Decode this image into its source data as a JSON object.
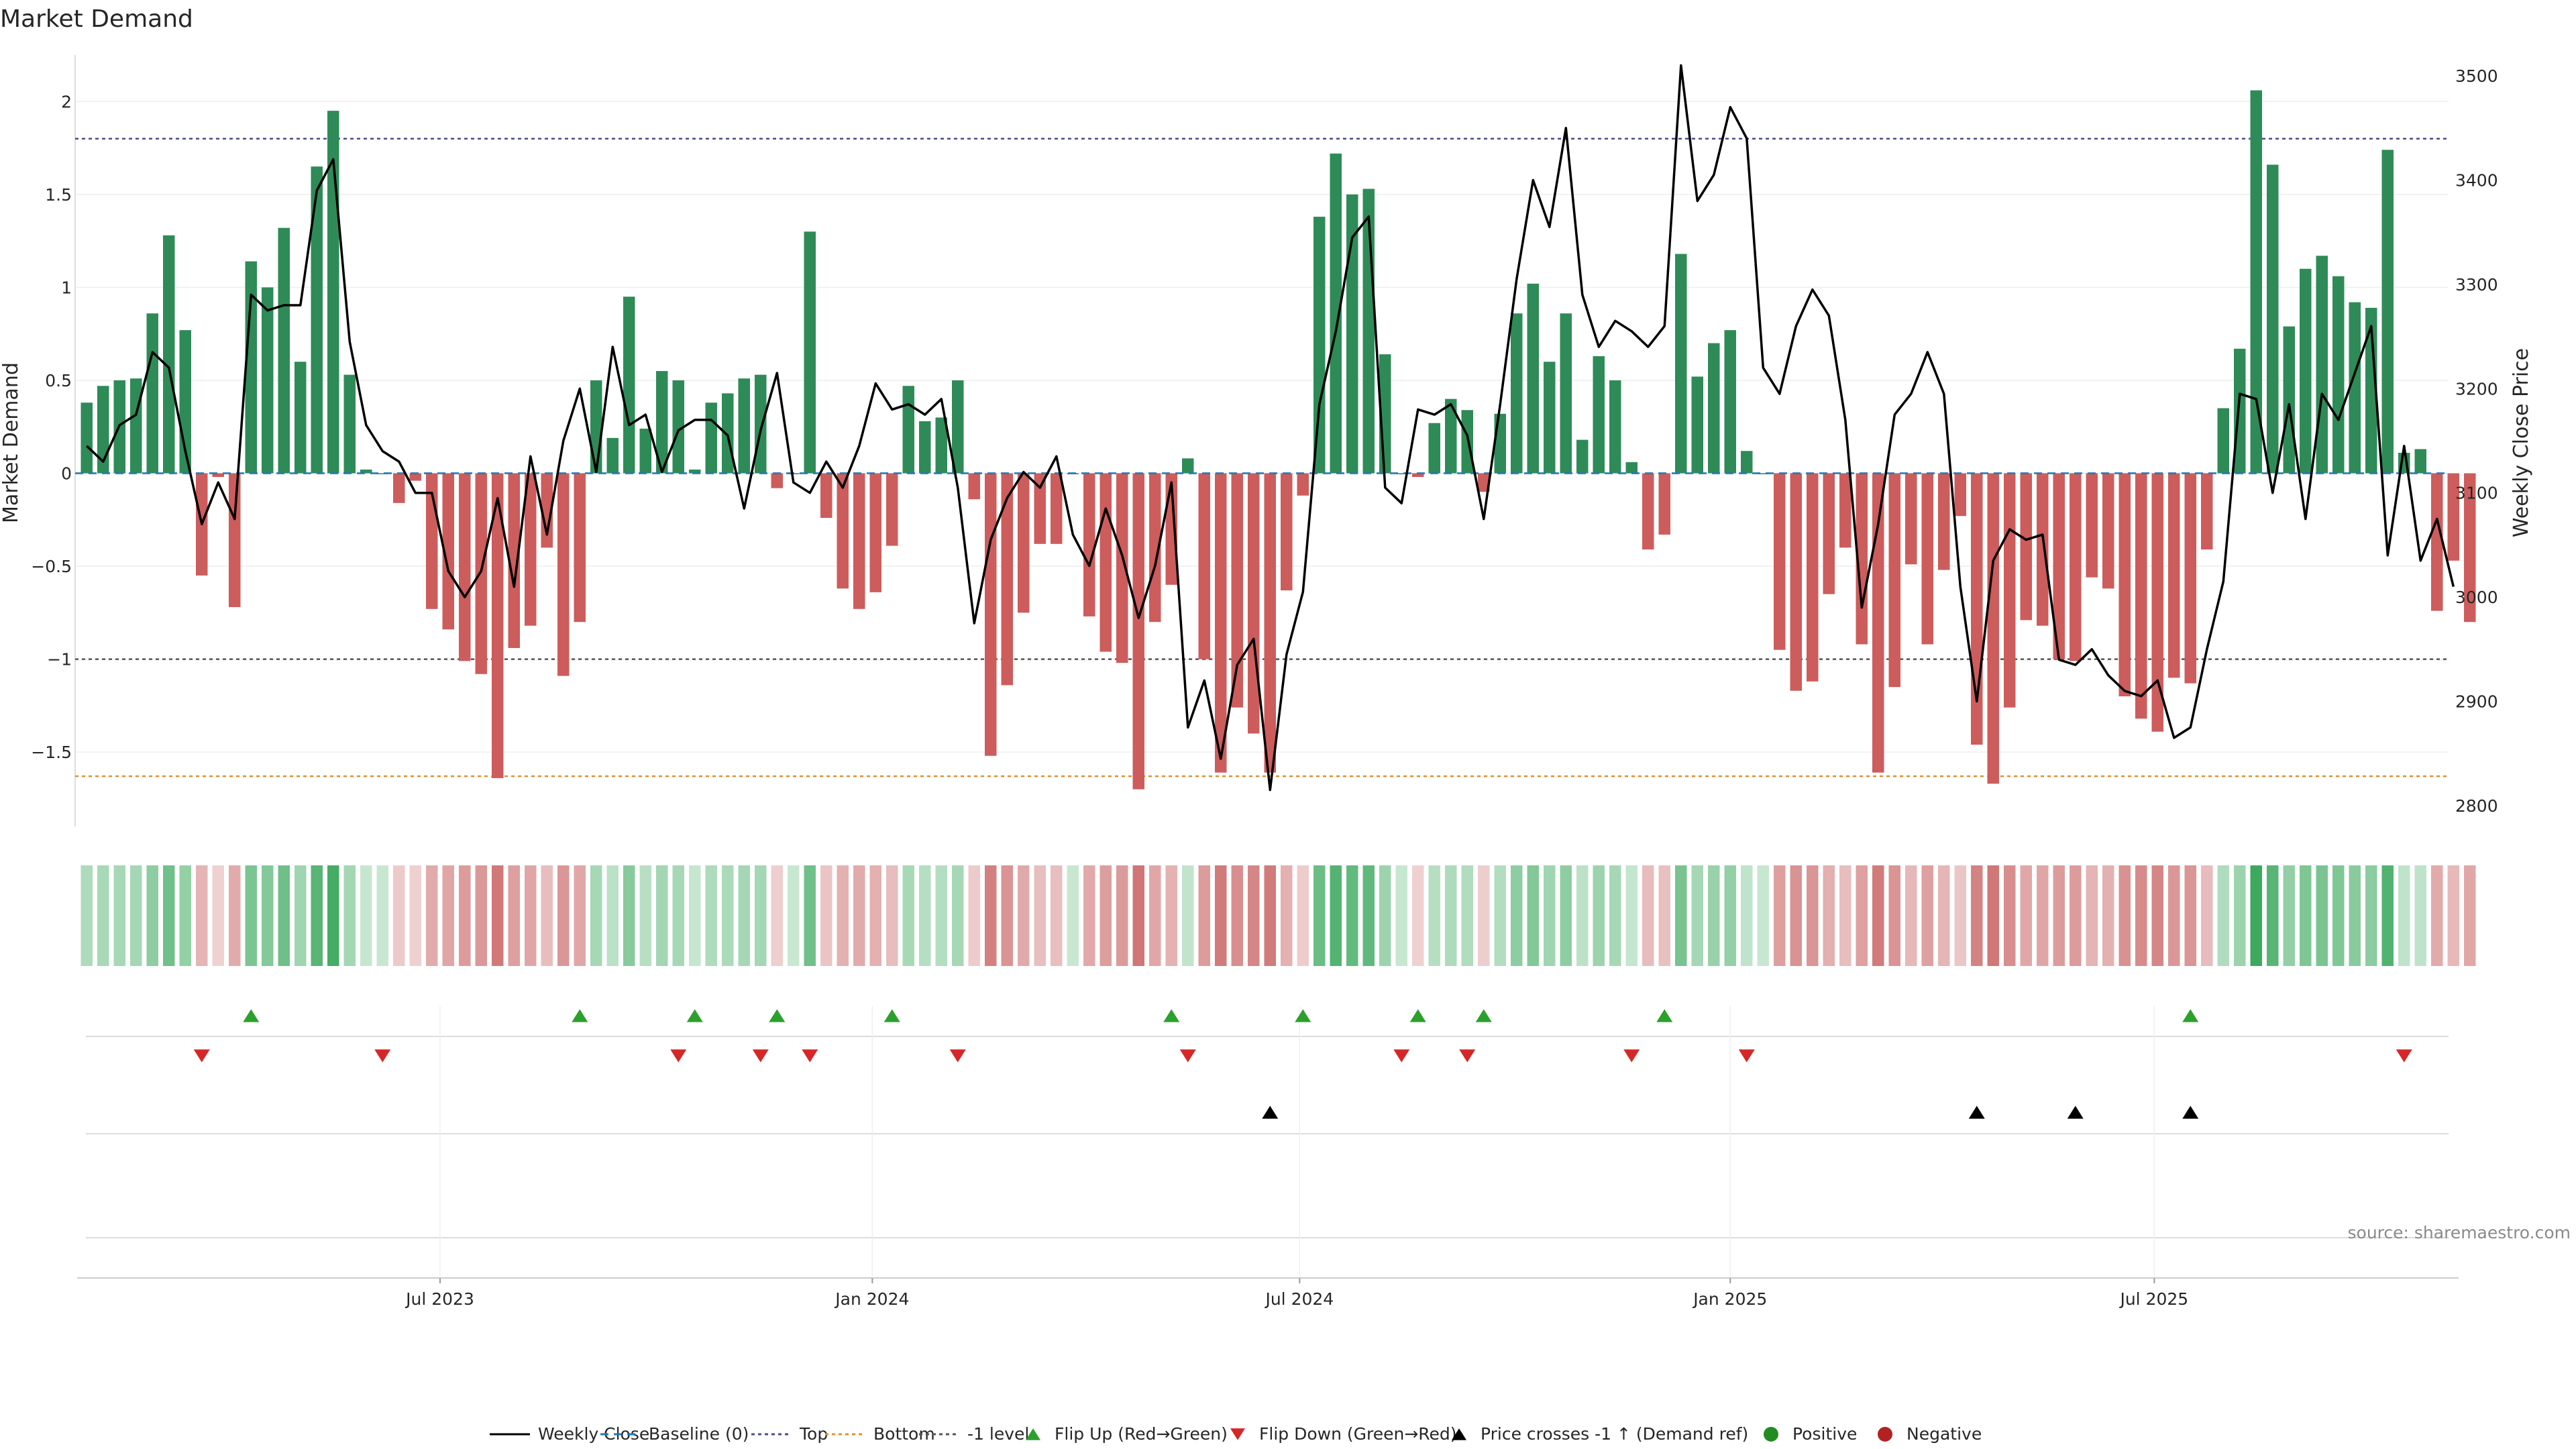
{
  "chart_data": {
    "type": "bar",
    "title": "Market Demand",
    "ylabel_left": "Market Demand",
    "ylabel_right": "Weekly Close Price",
    "ylim_left": [
      -1.9,
      2.25
    ],
    "ylim_right": [
      2780,
      3520
    ],
    "yticks_left": [
      2,
      1.5,
      1,
      0.5,
      0,
      -0.5,
      -1,
      -1.5
    ],
    "ytick_labels_left": [
      "2",
      "1.5",
      "1",
      "0.5",
      "0",
      "−0.5",
      "−1",
      "−1.5"
    ],
    "yticks_right": [
      3500,
      3400,
      3300,
      3200,
      3100,
      3000,
      2900,
      2800
    ],
    "ytick_labels_right": [
      "3500",
      "3400",
      "3300",
      "3200",
      "3100",
      "3000",
      "2900",
      "2800"
    ],
    "reference_lines": {
      "top": 1.8,
      "bottom": -1.63,
      "minus_one": -1.0,
      "baseline": 0
    },
    "x_tick_labels": [
      "Jul 2023",
      "Jan 2024",
      "Jul 2024",
      "Jan 2025",
      "Jul 2025"
    ],
    "x_tick_index": [
      22,
      48.3,
      74.3,
      100.5,
      126.3
    ],
    "demand": [
      0.38,
      0.47,
      0.5,
      0.51,
      0.86,
      1.28,
      0.77,
      -0.55,
      -0.02,
      -0.72,
      1.14,
      1.0,
      1.32,
      0.6,
      1.65,
      1.95,
      0.53,
      0.02,
      0.0,
      -0.16,
      -0.04,
      -0.73,
      -0.84,
      -1.01,
      -1.08,
      -1.64,
      -0.94,
      -0.82,
      -0.4,
      -1.09,
      -0.8,
      0.5,
      0.19,
      0.95,
      0.24,
      0.55,
      0.5,
      0.02,
      0.38,
      0.43,
      0.51,
      0.53,
      -0.08,
      0.0,
      1.3,
      -0.24,
      -0.62,
      -0.73,
      -0.64,
      -0.39,
      0.47,
      0.28,
      0.3,
      0.5,
      -0.14,
      -1.52,
      -1.14,
      -0.75,
      -0.38,
      -0.38,
      0.0,
      -0.77,
      -0.96,
      -1.02,
      -1.7,
      -0.8,
      -0.6,
      0.08,
      -1.0,
      -1.61,
      -1.26,
      -1.4,
      -1.61,
      -0.63,
      -0.12,
      1.38,
      1.72,
      1.5,
      1.53,
      0.64,
      0.0,
      -0.02,
      0.27,
      0.4,
      0.34,
      -0.1,
      0.32,
      0.86,
      1.02,
      0.6,
      0.86,
      0.18,
      0.63,
      0.5,
      0.06,
      -0.41,
      -0.33,
      1.18,
      0.52,
      0.7,
      0.77,
      0.12,
      0.0,
      -0.95,
      -1.17,
      -1.12,
      -0.65,
      -0.4,
      -0.92,
      -1.61,
      -1.15,
      -0.49,
      -0.92,
      -0.52,
      -0.23,
      -1.46,
      -1.67,
      -1.26,
      -0.79,
      -0.82,
      -1.0,
      -1.01,
      -0.56,
      -0.62,
      -1.2,
      -1.32,
      -1.39,
      -1.1,
      -1.13,
      -0.41,
      0.35,
      0.67,
      2.06,
      1.66,
      0.79,
      1.1,
      1.17,
      1.06,
      0.92,
      0.89,
      1.74,
      0.11,
      0.13,
      -0.74,
      -0.47,
      -0.8
    ],
    "weekly_close": [
      3145,
      3130,
      3165,
      3175,
      3235,
      3220,
      3140,
      3070,
      3110,
      3075,
      3290,
      3275,
      3280,
      3280,
      3390,
      3420,
      3245,
      3165,
      3140,
      3130,
      3100,
      3100,
      3025,
      3000,
      3025,
      3095,
      3010,
      3135,
      3060,
      3150,
      3200,
      3120,
      3240,
      3165,
      3175,
      3120,
      3160,
      3170,
      3170,
      3155,
      3085,
      3160,
      3215,
      3110,
      3100,
      3130,
      3105,
      3145,
      3205,
      3180,
      3185,
      3175,
      3190,
      3105,
      2975,
      3055,
      3095,
      3120,
      3105,
      3135,
      3060,
      3030,
      3085,
      3040,
      2980,
      3030,
      3110,
      2875,
      2920,
      2845,
      2935,
      2960,
      2815,
      2945,
      3005,
      3185,
      3255,
      3345,
      3365,
      3105,
      3090,
      3180,
      3175,
      3185,
      3155,
      3075,
      3185,
      3305,
      3400,
      3355,
      3450,
      3290,
      3240,
      3265,
      3255,
      3240,
      3260,
      3510,
      3380,
      3405,
      3470,
      3440,
      3220,
      3195,
      3260,
      3295,
      3270,
      3170,
      2990,
      3070,
      3175,
      3195,
      3235,
      3195,
      3010,
      2900,
      3035,
      3065,
      3055,
      3060,
      2940,
      2935,
      2950,
      2925,
      2910,
      2905,
      2920,
      2865,
      2875,
      2950,
      3015,
      3195,
      3190,
      3100,
      3185,
      3075,
      3195,
      3170,
      3215,
      3260,
      3040,
      3145,
      3035,
      3075,
      3010
    ],
    "flip_up_index": [
      10,
      30,
      37,
      42,
      49,
      66,
      74,
      81,
      85,
      96,
      128
    ],
    "flip_down_index": [
      7,
      18,
      36,
      41,
      44,
      53,
      67,
      80,
      84,
      94,
      101,
      141
    ],
    "price_cross_index": [
      72,
      115,
      121,
      128
    ],
    "legend": [
      "Weekly Close",
      "Baseline (0)",
      "Top",
      "Bottom",
      "-1 level",
      "Flip Up (Red→Green)",
      "Flip Down (Green→Red)",
      "Price crosses -1 ↑ (Demand ref)",
      "Positive",
      "Negative"
    ],
    "source": "source: sharemaestro.com",
    "colors": {
      "positive": "#2e8b57",
      "negative": "#cd5c5c",
      "line": "#000000",
      "baseline": "#1f77b4",
      "top": "#4b4b8f",
      "bottom": "#e0902a",
      "minus_one": "#555555",
      "flip_up": "#2ca02c",
      "flip_down": "#d62728",
      "legend_positive": "#228b22",
      "legend_negative": "#b22222"
    }
  }
}
